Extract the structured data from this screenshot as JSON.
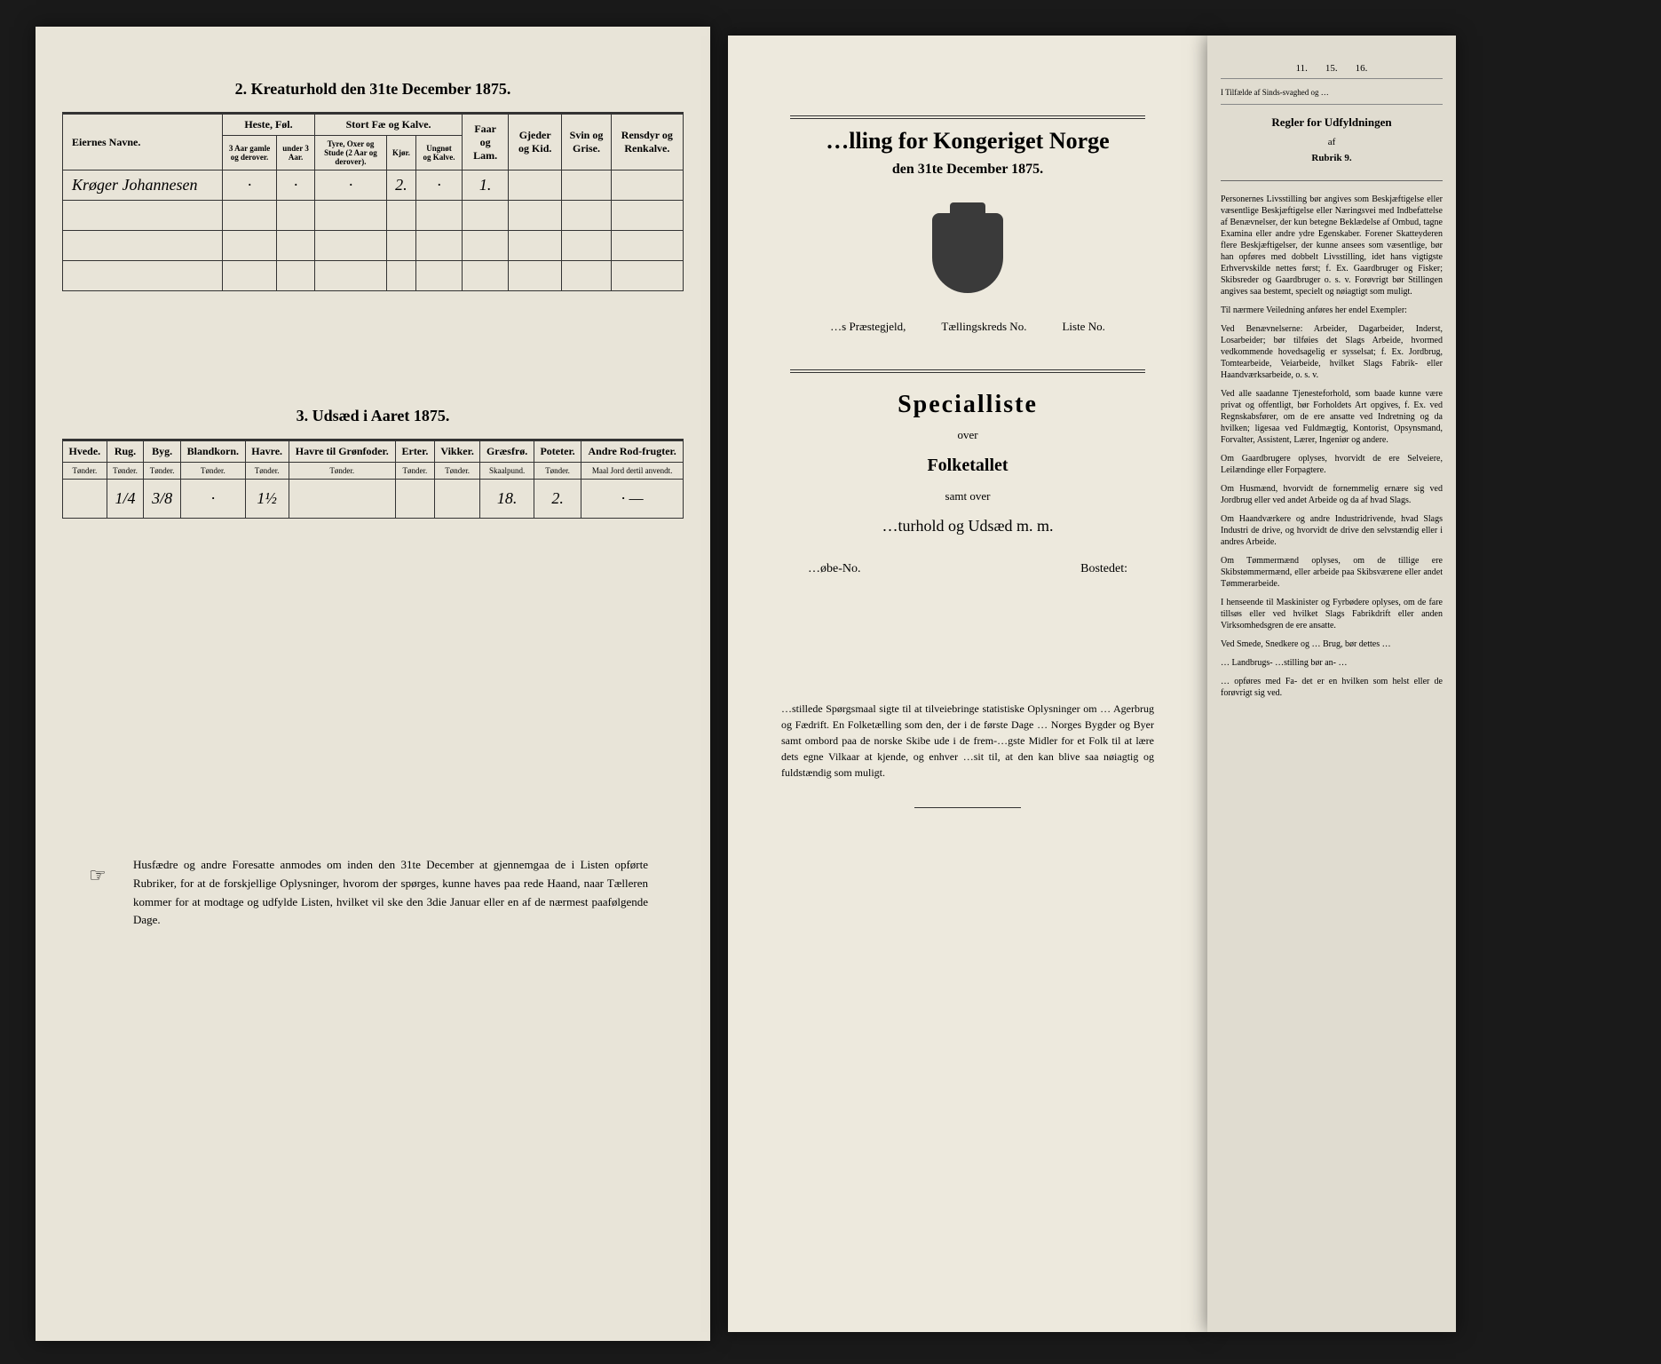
{
  "left_page": {
    "table2": {
      "title": "2. Kreaturhold den 31te December 1875.",
      "col_name": "Eiernes Navne.",
      "group_heste": "Heste, Føl.",
      "group_fae": "Stort Fæ og Kalve.",
      "col_faar": "Faar og Lam.",
      "col_gjeder": "Gjeder og Kid.",
      "col_svin": "Svin og Grise.",
      "col_rensdyr": "Rensdyr og Renkalve.",
      "sub_heste1": "3 Aar gamle og derover.",
      "sub_heste2": "under 3 Aar.",
      "sub_fae1": "Tyre, Oxer og Stude (2 Aar og derover).",
      "sub_fae2": "Kjør.",
      "sub_fae3": "Ungnøt og Kalve.",
      "rows": [
        {
          "name": "Krøger Johannesen",
          "c1": "·",
          "c2": "·",
          "c3": "·",
          "c4": "2.",
          "c5": "·",
          "c6": "1.",
          "c7": "",
          "c8": "",
          "c9": ""
        },
        {
          "name": "",
          "c1": "",
          "c2": "",
          "c3": "",
          "c4": "",
          "c5": "",
          "c6": "",
          "c7": "",
          "c8": "",
          "c9": ""
        },
        {
          "name": "",
          "c1": "",
          "c2": "",
          "c3": "",
          "c4": "",
          "c5": "",
          "c6": "",
          "c7": "",
          "c8": "",
          "c9": ""
        },
        {
          "name": "",
          "c1": "",
          "c2": "",
          "c3": "",
          "c4": "",
          "c5": "",
          "c6": "",
          "c7": "",
          "c8": "",
          "c9": ""
        }
      ]
    },
    "table3": {
      "title": "3. Udsæd i Aaret 1875.",
      "cols": [
        "Hvede.",
        "Rug.",
        "Byg.",
        "Blandkorn.",
        "Havre.",
        "Havre til Grønfoder.",
        "Erter.",
        "Vikker.",
        "Græsfrø.",
        "Poteter.",
        "Andre Rod-frugter."
      ],
      "units": [
        "Tønder.",
        "Tønder.",
        "Tønder.",
        "Tønder.",
        "Tønder.",
        "Tønder.",
        "Tønder.",
        "Tønder.",
        "Skaalpund.",
        "Tønder.",
        "Maal Jord dertil anvendt."
      ],
      "row": [
        "",
        "1/4",
        "3/8",
        "·",
        "1½",
        "",
        "",
        "",
        "18.",
        "2.",
        "· —"
      ]
    },
    "footnote": "Husfædre og andre Foresatte anmodes om inden den 31te December at gjennemgaa de i Listen opførte Rubriker, for at de forskjellige Oplysninger, hvorom der spørges, kunne haves paa rede Haand, naar Tælleren kommer for at modtage og udfylde Listen, hvilket vil ske den 3die Januar eller en af de nærmest paafølgende Dage."
  },
  "right_page": {
    "main_title_partial": "…lling for Kongeriget Norge",
    "sub_title": "den 31te December 1875.",
    "praestegjeld": "…s Præstegjeld,",
    "taellingskreds": "Tællingskreds No.",
    "liste": "Liste No.",
    "special": "Specialliste",
    "over": "over",
    "folketallet": "Folketallet",
    "samt": "samt over",
    "kreaturhold": "…turhold og Udsæd m. m.",
    "loebe": "…øbe-No.",
    "bostedet": "Bostedet:",
    "footnote": "…stillede Spørgsmaal sigte til at tilveiebringe statistiske Oplysninger om … Agerbrug og Fædrift. En Folketælling som den, der i de første Dage … Norges Bygder og Byer samt ombord paa de norske Skibe ude i de frem-…gste Midler for et Folk til at lære dets egne Vilkaar at kjende, og enhver …sit til, at den kan blive saa nøiagtig og fuldstændig som muligt."
  },
  "rules_page": {
    "col_nums": [
      "11.",
      "15.",
      "16."
    ],
    "tilfælde": "I Tilfælde af Sinds-svaghed og …",
    "title": "Regler for Udfyldningen",
    "af": "af",
    "rubrik": "Rubrik 9.",
    "paragraphs": [
      "Personernes Livsstilling bør angives som Beskjæftigelse eller væsentlige Beskjæftigelse eller Næringsvei med Indbefattelse af Benævnelser, der kun betegne Beklædelse af Ombud, tagne Examina eller andre ydre Egenskaber. Forener Skatteyderen flere Beskjæftigelser, der kunne ansees som væsentlige, bør han opføres med dobbelt Livsstilling, idet hans vigtigste Erhvervskilde nettes først; f. Ex. Gaardbruger og Fisker; Skibsreder og Gaardbruger o. s. v. Forøvrigt bør Stillingen angives saa bestemt, specielt og nøiagtigt som muligt.",
      "Til nærmere Veiledning anføres her endel Exempler:",
      "Ved Benævnelserne: Arbeider, Dagarbeider, Inderst, Losarbeider; bør tilføies det Slags Arbeide, hvormed vedkommende hovedsagelig er sysselsat; f. Ex. Jordbrug, Tomtearbeide, Veiarbeide, hvilket Slags Fabrik- eller Haandværksarbeide, o. s. v.",
      "Ved alle saadanne Tjenesteforhold, som baade kunne være privat og offentligt, bør Forholdets Art opgives, f. Ex. ved Regnskabsfører, om de ere ansatte ved Indretning og da hvilken; ligesaa ved Fuldmægtig, Kontorist, Opsynsmand, Forvalter, Assistent, Lærer, Ingeniør og andere.",
      "Om Gaardbrugere oplyses, hvorvidt de ere Selveiere, Leilændinge eller Forpagtere.",
      "Om Husmænd, hvorvidt de fornemmelig ernære sig ved Jordbrug eller ved andet Arbeide og da af hvad Slags.",
      "Om Haandværkere og andre Industridrivende, hvad Slags Industri de drive, og hvorvidt de drive den selvstændig eller i andres Arbeide.",
      "Om Tømmermænd oplyses, om de tillige ere Skibstømmermænd, eller arbeide paa Skibsværene eller andet Tømmerarbeide.",
      "I henseende til Maskinister og Fyrbødere oplyses, om de fare tillsøs eller ved hvilket Slags Fabrikdrift eller anden Virksomhedsgren de ere ansatte.",
      "Ved Smede, Snedkere og … Brug, bør dettes …",
      "… Landbrugs- …stilling bør an- …",
      "… opføres med Fa- det er en hvilken som helst eller de forøvrigt sig ved."
    ]
  }
}
